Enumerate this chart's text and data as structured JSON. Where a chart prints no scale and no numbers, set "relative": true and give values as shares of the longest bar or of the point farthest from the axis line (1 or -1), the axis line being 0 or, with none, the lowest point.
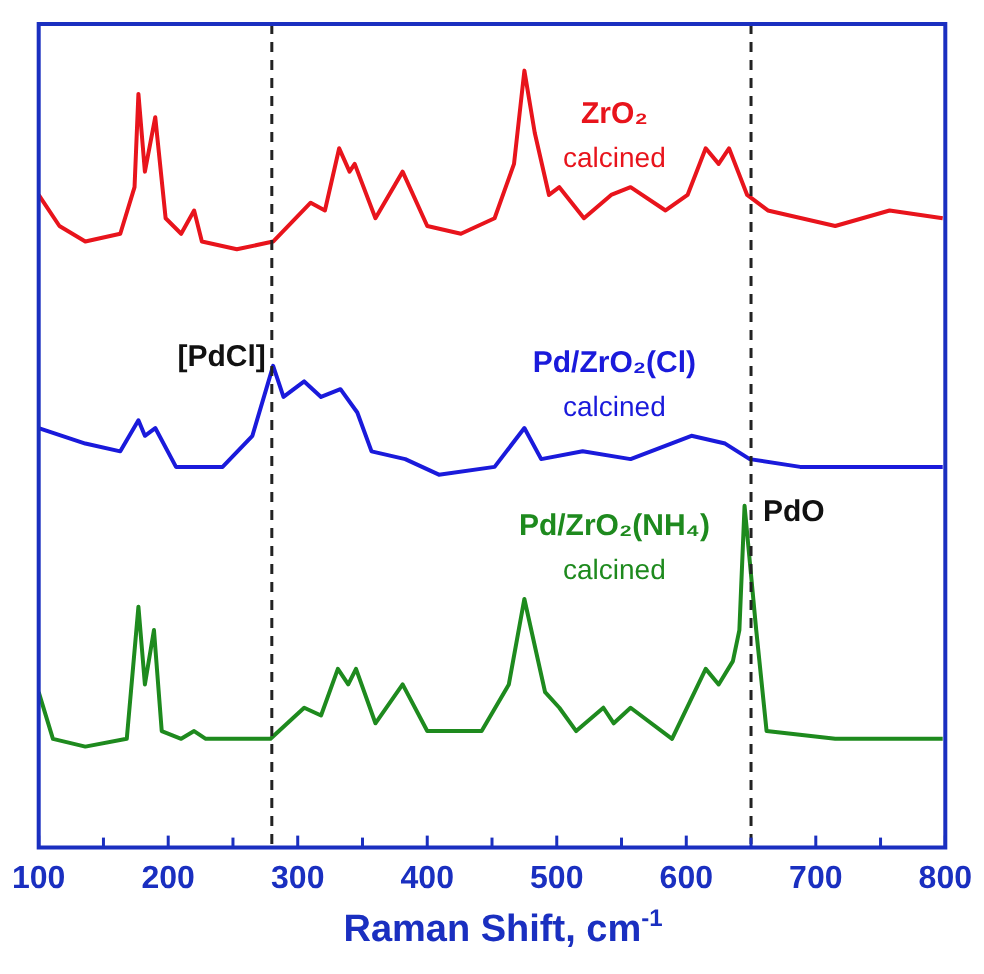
{
  "chart_data": {
    "type": "line",
    "relative": true,
    "xlabel": "Raman Shift, cm$^{-1}$",
    "xlim": [
      100,
      800
    ],
    "xticks": [
      100,
      {
        "value": 150,
        "label": null
      },
      200,
      {
        "value": 250,
        "label": null
      },
      300,
      {
        "value": 350,
        "label": null
      },
      400,
      {
        "value": 450,
        "label": null
      },
      500,
      {
        "value": 550,
        "label": null
      },
      600,
      {
        "value": 650,
        "label": null
      },
      700,
      {
        "value": 750,
        "label": null
      },
      800
    ],
    "tick_labels": "x",
    "grid": false,
    "legend": false,
    "series": [
      {
        "name": "ZrO₂ calcined",
        "color": "#e8141c",
        "x": [
          100,
          116,
          136,
          163,
          174,
          177,
          182,
          190,
          198,
          210,
          220,
          226,
          253,
          281,
          310,
          321,
          332,
          340,
          344,
          360,
          381,
          400,
          426,
          452,
          467,
          475,
          483,
          494,
          502,
          521,
          542,
          557,
          584,
          601,
          615,
          625,
          633,
          647,
          663,
          715,
          757,
          798
        ],
        "values": [
          0.84,
          0.8,
          0.78,
          0.79,
          0.85,
          0.97,
          0.87,
          0.94,
          0.81,
          0.79,
          0.82,
          0.78,
          0.77,
          0.78,
          0.83,
          0.82,
          0.9,
          0.87,
          0.88,
          0.81,
          0.87,
          0.8,
          0.79,
          0.81,
          0.88,
          1.0,
          0.92,
          0.84,
          0.85,
          0.81,
          0.84,
          0.85,
          0.82,
          0.84,
          0.9,
          0.88,
          0.9,
          0.84,
          0.82,
          0.8,
          0.82,
          0.81
        ]
      },
      {
        "name": "Pd/ZrO₂(Cl) calcined",
        "color": "#1a1adb",
        "x": [
          100,
          136,
          163,
          177,
          182,
          190,
          206,
          242,
          265,
          281,
          289,
          305,
          318,
          333,
          346,
          357,
          383,
          409,
          452,
          475,
          488,
          520,
          557,
          604,
          630,
          649,
          688,
          741,
          798
        ],
        "values": [
          0.54,
          0.52,
          0.51,
          0.55,
          0.53,
          0.54,
          0.49,
          0.49,
          0.53,
          0.62,
          0.58,
          0.6,
          0.58,
          0.59,
          0.56,
          0.51,
          0.5,
          0.48,
          0.49,
          0.54,
          0.5,
          0.51,
          0.5,
          0.53,
          0.52,
          0.5,
          0.49,
          0.49,
          0.49
        ]
      },
      {
        "name": "Pd/ZrO₂(NH₄) calcined",
        "color": "#1e8a1e",
        "x": [
          100,
          111,
          136,
          168,
          177,
          182,
          189,
          195,
          210,
          220,
          229,
          279,
          305,
          318,
          331,
          339,
          345,
          360,
          381,
          400,
          442,
          463,
          475,
          491,
          502,
          515,
          536,
          544,
          557,
          589,
          615,
          625,
          636,
          641,
          645,
          654,
          662,
          715,
          757,
          798
        ],
        "values": [
          0.2,
          0.14,
          0.13,
          0.14,
          0.31,
          0.21,
          0.28,
          0.15,
          0.14,
          0.15,
          0.14,
          0.14,
          0.18,
          0.17,
          0.23,
          0.21,
          0.23,
          0.16,
          0.21,
          0.15,
          0.15,
          0.21,
          0.32,
          0.2,
          0.18,
          0.15,
          0.18,
          0.16,
          0.18,
          0.14,
          0.23,
          0.21,
          0.24,
          0.28,
          0.44,
          0.28,
          0.15,
          0.14,
          0.14,
          0.14
        ]
      }
    ],
    "ref_lines": [
      {
        "axis": "x",
        "value": 280,
        "line_style": "dashed"
      },
      {
        "axis": "x",
        "value": 650,
        "line_style": "dashed"
      }
    ],
    "annotations": [
      {
        "text": "[PdCl]",
        "x": 280,
        "y": 0.62
      },
      {
        "text": "PdO",
        "x": 650,
        "y": 0.42
      }
    ]
  }
}
